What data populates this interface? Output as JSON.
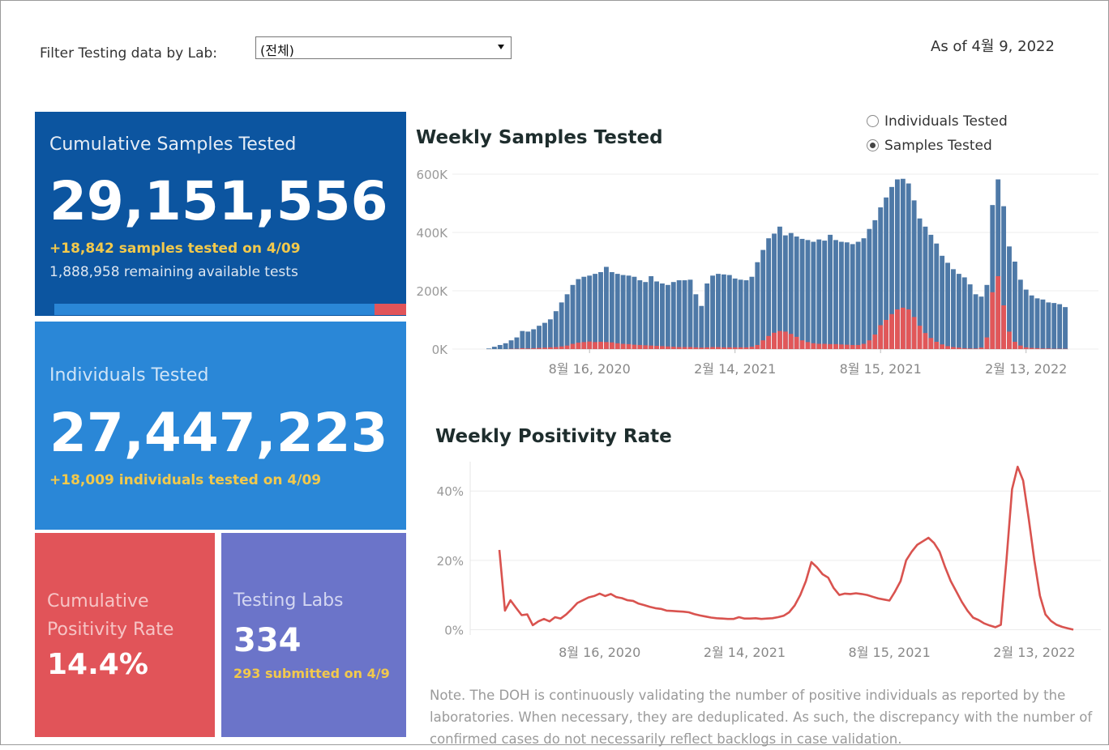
{
  "filter": {
    "label": "Filter Testing data by Lab:",
    "selected": "(전체)"
  },
  "as_of": "As of 4월 9, 2022",
  "cards": {
    "samples": {
      "title": "Cumulative Samples Tested",
      "value": "29,151,556",
      "sub": "+18,842 samples tested on 4/09",
      "note": "1,888,958 remaining available tests",
      "used_fraction": 0.91
    },
    "individuals": {
      "title": "Individuals Tested",
      "value": "27,447,223",
      "sub": "+18,009  individuals  tested on 4/09"
    },
    "positivity": {
      "title_line1": "Cumulative",
      "title_line2": "Positivity Rate",
      "value": "14.4%"
    },
    "labs": {
      "title": "Testing Labs",
      "value": "334",
      "sub": "293 submitted on 4/9"
    }
  },
  "toggle": {
    "options": [
      "Individuals Tested",
      "Samples Tested"
    ],
    "selected": "Samples Tested"
  },
  "note": "Note. The DOH is continuously validating the number of positive individuals as reported by the laboratories. When necessary, they are deduplicated. As such, the discrepancy with the number of confirmed cases do not necessarily reflect backlogs in case validation.",
  "colors": {
    "blue_bar": "#4e79a7",
    "red_bar": "#e15759",
    "line": "#d9534f"
  },
  "chart_data": [
    {
      "type": "bar",
      "title": "Weekly Samples Tested",
      "x_tick_labels": [
        "8월 16, 2020",
        "2월 14, 2021",
        "8월 15, 2021",
        "2월 13, 2022"
      ],
      "y_tick_labels": [
        "0K",
        "200K",
        "400K",
        "600K"
      ],
      "ylim": [
        0,
        600000
      ],
      "stacked": false,
      "series": [
        {
          "values": [
            2000,
            8000,
            14000,
            20000,
            30000,
            40000,
            62000,
            60000,
            68000,
            80000,
            90000,
            102000,
            130000,
            160000,
            188000,
            220000,
            240000,
            248000,
            252000,
            258000,
            264000,
            282000,
            264000,
            258000,
            254000,
            252000,
            248000,
            236000,
            230000,
            250000,
            232000,
            225000,
            220000,
            230000,
            236000,
            236000,
            238000,
            188000,
            148000,
            225000,
            252000,
            258000,
            256000,
            254000,
            242000,
            238000,
            236000,
            248000,
            298000,
            340000,
            380000,
            396000,
            420000,
            390000,
            398000,
            386000,
            378000,
            374000,
            368000,
            376000,
            372000,
            392000,
            374000,
            368000,
            366000,
            360000,
            368000,
            380000,
            412000,
            442000,
            486000,
            520000,
            556000,
            582000,
            584000,
            568000,
            510000,
            448000,
            420000,
            392000,
            362000,
            320000,
            296000,
            274000,
            258000,
            246000,
            222000,
            188000,
            180000,
            220000,
            494000,
            582000,
            490000,
            352000,
            300000,
            238000,
            204000,
            184000,
            174000,
            170000,
            160000,
            158000,
            154000,
            144000
          ]
        },
        {
          "values": [
            0,
            0,
            0,
            0,
            1000,
            1000,
            3000,
            2000,
            3000,
            4000,
            5000,
            6000,
            7000,
            9000,
            12000,
            18000,
            22000,
            24000,
            26000,
            24000,
            25000,
            24000,
            23000,
            20000,
            18000,
            17000,
            15000,
            14000,
            13000,
            12000,
            11000,
            10000,
            9000,
            8000,
            7000,
            7000,
            7000,
            6000,
            5000,
            6000,
            7000,
            7000,
            6000,
            6000,
            6000,
            6000,
            6000,
            8000,
            14000,
            30000,
            45000,
            56000,
            62000,
            60000,
            52000,
            42000,
            30000,
            24000,
            20000,
            18000,
            18000,
            17000,
            17000,
            16000,
            15000,
            14000,
            14000,
            18000,
            30000,
            50000,
            82000,
            100000,
            120000,
            136000,
            142000,
            136000,
            110000,
            80000,
            55000,
            38000,
            25000,
            16000,
            10000,
            7000,
            5000,
            3000,
            2000,
            2000,
            5000,
            40000,
            195000,
            250000,
            150000,
            60000,
            25000,
            12000,
            6000,
            4000,
            3000,
            2000,
            2000,
            1000,
            1000,
            1000
          ]
        }
      ]
    },
    {
      "type": "line",
      "title": "Weekly Positivity Rate",
      "x_tick_labels": [
        "8월 16, 2020",
        "2월 14, 2021",
        "8월 15, 2021",
        "2월 13, 2022"
      ],
      "y_tick_labels": [
        "0%",
        "20%",
        "40%"
      ],
      "ylim": [
        -2,
        48
      ],
      "series": [
        {
          "values": [
            23,
            5.5,
            8.5,
            6.3,
            4.2,
            4.4,
            1.3,
            2.4,
            3.1,
            2.4,
            3.6,
            3.2,
            4.4,
            6,
            7.7,
            8.5,
            9.3,
            9.7,
            10.4,
            9.7,
            10.3,
            9.4,
            9.1,
            8.5,
            8.3,
            7.5,
            7.1,
            6.6,
            6.2,
            6,
            5.5,
            5.4,
            5.3,
            5.2,
            5,
            4.5,
            4.1,
            3.8,
            3.5,
            3.3,
            3.2,
            3.1,
            3.1,
            3.6,
            3.2,
            3.2,
            3.3,
            3.1,
            3.2,
            3.3,
            3.6,
            4,
            5,
            7,
            10,
            14,
            19.5,
            18,
            16,
            15,
            12,
            10,
            10.4,
            10.3,
            10.5,
            10.3,
            10,
            9.5,
            9,
            8.7,
            8.4,
            11,
            14,
            20,
            22.5,
            24.5,
            25.5,
            26.5,
            25,
            22.5,
            18,
            14,
            11,
            8,
            5.5,
            3.5,
            2.8,
            1.8,
            1.2,
            0.7,
            1.4,
            20,
            40.5,
            47,
            43,
            32,
            20,
            9.8,
            4.4,
            2.5,
            1.4,
            0.8,
            0.4,
            0
          ]
        }
      ]
    }
  ]
}
